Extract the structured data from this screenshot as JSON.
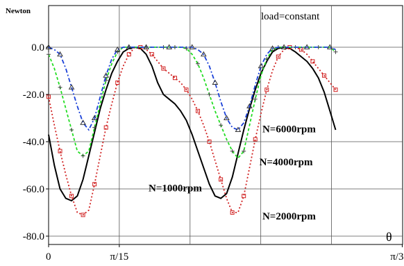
{
  "chart_data": {
    "type": "line",
    "ylabel": "Newton",
    "xlabel": "θ",
    "annotation": "load=constant",
    "xlim": [
      0,
      1.0472
    ],
    "ylim": [
      -90,
      5
    ],
    "y_ticks": [
      {
        "value": 0,
        "label": "0.0"
      },
      {
        "value": -20,
        "label": "-20.0"
      },
      {
        "value": -40,
        "label": "-40.0"
      },
      {
        "value": -60,
        "label": "-60.0"
      },
      {
        "value": -80,
        "label": "-80.0"
      }
    ],
    "x_ticks": [
      {
        "value": 0,
        "label": "0"
      },
      {
        "value": 0.2094,
        "label": "π/15"
      },
      {
        "value": 1.0472,
        "label": "π/3"
      }
    ],
    "x_grid": [
      0.2094,
      0.4189,
      0.6283,
      0.8378
    ],
    "series": [
      {
        "name": "N=1000rpm",
        "color": "#000000",
        "dash": "solid",
        "marker": "none",
        "label_x": 0.296,
        "label_y": -61,
        "points": [
          [
            0,
            -37
          ],
          [
            0.017,
            -50
          ],
          [
            0.034,
            -60
          ],
          [
            0.051,
            -64
          ],
          [
            0.068,
            -65
          ],
          [
            0.085,
            -63
          ],
          [
            0.102,
            -56
          ],
          [
            0.119,
            -46
          ],
          [
            0.136,
            -36
          ],
          [
            0.153,
            -26
          ],
          [
            0.17,
            -18
          ],
          [
            0.187,
            -11
          ],
          [
            0.204,
            -6
          ],
          [
            0.221,
            -2
          ],
          [
            0.238,
            -0.5
          ],
          [
            0.255,
            0
          ],
          [
            0.272,
            -0.5
          ],
          [
            0.289,
            -3
          ],
          [
            0.306,
            -8
          ],
          [
            0.323,
            -15
          ],
          [
            0.34,
            -20
          ],
          [
            0.357,
            -22
          ],
          [
            0.374,
            -24
          ],
          [
            0.391,
            -27
          ],
          [
            0.408,
            -31
          ],
          [
            0.425,
            -37
          ],
          [
            0.442,
            -44
          ],
          [
            0.459,
            -51
          ],
          [
            0.476,
            -58
          ],
          [
            0.493,
            -63
          ],
          [
            0.51,
            -64
          ],
          [
            0.527,
            -62
          ],
          [
            0.544,
            -55
          ],
          [
            0.561,
            -45
          ],
          [
            0.578,
            -35
          ],
          [
            0.595,
            -26
          ],
          [
            0.612,
            -18
          ],
          [
            0.629,
            -11
          ],
          [
            0.646,
            -6
          ],
          [
            0.663,
            -2
          ],
          [
            0.68,
            -0.5
          ],
          [
            0.697,
            0
          ],
          [
            0.714,
            -0.5
          ],
          [
            0.731,
            -2
          ],
          [
            0.748,
            -4
          ],
          [
            0.765,
            -6
          ],
          [
            0.782,
            -9
          ],
          [
            0.799,
            -13
          ],
          [
            0.816,
            -19
          ],
          [
            0.833,
            -27
          ],
          [
            0.85,
            -35
          ]
        ]
      },
      {
        "name": "N=2000rpm",
        "color": "#d02020",
        "dash": "dotted",
        "marker": "square",
        "label_x": 0.633,
        "label_y": -73,
        "points": [
          [
            0,
            -21
          ],
          [
            0.017,
            -33
          ],
          [
            0.034,
            -44
          ],
          [
            0.051,
            -54
          ],
          [
            0.068,
            -63
          ],
          [
            0.085,
            -70
          ],
          [
            0.102,
            -71
          ],
          [
            0.119,
            -69
          ],
          [
            0.136,
            -58
          ],
          [
            0.153,
            -46
          ],
          [
            0.17,
            -34
          ],
          [
            0.187,
            -24
          ],
          [
            0.204,
            -15
          ],
          [
            0.221,
            -8
          ],
          [
            0.238,
            -3
          ],
          [
            0.255,
            0
          ],
          [
            0.272,
            0
          ],
          [
            0.289,
            -1
          ],
          [
            0.306,
            -3
          ],
          [
            0.323,
            -6
          ],
          [
            0.34,
            -9
          ],
          [
            0.357,
            -11
          ],
          [
            0.374,
            -13
          ],
          [
            0.391,
            -15
          ],
          [
            0.408,
            -18
          ],
          [
            0.425,
            -22
          ],
          [
            0.442,
            -27
          ],
          [
            0.459,
            -33
          ],
          [
            0.476,
            -40
          ],
          [
            0.493,
            -48
          ],
          [
            0.51,
            -56
          ],
          [
            0.527,
            -64
          ],
          [
            0.544,
            -70
          ],
          [
            0.561,
            -70
          ],
          [
            0.578,
            -63
          ],
          [
            0.595,
            -51
          ],
          [
            0.612,
            -39
          ],
          [
            0.629,
            -28
          ],
          [
            0.646,
            -18
          ],
          [
            0.663,
            -10
          ],
          [
            0.68,
            -4
          ],
          [
            0.697,
            -1
          ],
          [
            0.714,
            0
          ],
          [
            0.731,
            0
          ],
          [
            0.748,
            -1
          ],
          [
            0.765,
            -3
          ],
          [
            0.782,
            -6
          ],
          [
            0.799,
            -9
          ],
          [
            0.816,
            -12
          ],
          [
            0.833,
            -15
          ],
          [
            0.85,
            -18
          ]
        ]
      },
      {
        "name": "N=4000rpm",
        "color": "#22dd22",
        "dash": "dashed",
        "marker": "plus",
        "label_x": 0.624,
        "label_y": -50,
        "points": [
          [
            0,
            -3
          ],
          [
            0.017,
            -9
          ],
          [
            0.034,
            -17
          ],
          [
            0.051,
            -26
          ],
          [
            0.068,
            -35
          ],
          [
            0.085,
            -44
          ],
          [
            0.102,
            -46
          ],
          [
            0.119,
            -44
          ],
          [
            0.136,
            -34
          ],
          [
            0.153,
            -24
          ],
          [
            0.17,
            -14
          ],
          [
            0.187,
            -7
          ],
          [
            0.204,
            -2
          ],
          [
            0.221,
            0
          ],
          [
            0.238,
            0
          ],
          [
            0.255,
            0
          ],
          [
            0.289,
            0
          ],
          [
            0.323,
            0
          ],
          [
            0.34,
            0
          ],
          [
            0.357,
            0
          ],
          [
            0.374,
            0
          ],
          [
            0.391,
            0
          ],
          [
            0.408,
            -0.5
          ],
          [
            0.425,
            -3
          ],
          [
            0.442,
            -7
          ],
          [
            0.459,
            -13
          ],
          [
            0.476,
            -20
          ],
          [
            0.493,
            -27
          ],
          [
            0.51,
            -33
          ],
          [
            0.527,
            -39
          ],
          [
            0.544,
            -44
          ],
          [
            0.561,
            -47
          ],
          [
            0.578,
            -44
          ],
          [
            0.595,
            -33
          ],
          [
            0.612,
            -22
          ],
          [
            0.629,
            -12
          ],
          [
            0.646,
            -5
          ],
          [
            0.663,
            -1
          ],
          [
            0.68,
            0
          ],
          [
            0.697,
            0
          ],
          [
            0.731,
            0
          ],
          [
            0.765,
            0
          ],
          [
            0.799,
            0
          ],
          [
            0.833,
            0
          ],
          [
            0.85,
            -2
          ]
        ]
      },
      {
        "name": "N=6000rpm",
        "color": "#1a40d8",
        "dash": "dashdot",
        "marker": "triangle",
        "label_x": 0.633,
        "label_y": -36,
        "points": [
          [
            0,
            0
          ],
          [
            0.017,
            -1
          ],
          [
            0.034,
            -3
          ],
          [
            0.051,
            -9
          ],
          [
            0.068,
            -17
          ],
          [
            0.085,
            -25
          ],
          [
            0.102,
            -32
          ],
          [
            0.119,
            -35
          ],
          [
            0.136,
            -30
          ],
          [
            0.153,
            -21
          ],
          [
            0.17,
            -12
          ],
          [
            0.187,
            -5
          ],
          [
            0.204,
            -1
          ],
          [
            0.221,
            0
          ],
          [
            0.238,
            0
          ],
          [
            0.255,
            0
          ],
          [
            0.289,
            0
          ],
          [
            0.323,
            0
          ],
          [
            0.357,
            0
          ],
          [
            0.391,
            0
          ],
          [
            0.425,
            0
          ],
          [
            0.442,
            -1
          ],
          [
            0.459,
            -3
          ],
          [
            0.476,
            -8
          ],
          [
            0.493,
            -15
          ],
          [
            0.51,
            -23
          ],
          [
            0.527,
            -30
          ],
          [
            0.544,
            -34
          ],
          [
            0.561,
            -35
          ],
          [
            0.578,
            -32
          ],
          [
            0.595,
            -25
          ],
          [
            0.612,
            -16
          ],
          [
            0.629,
            -8
          ],
          [
            0.646,
            -3
          ],
          [
            0.663,
            -0.5
          ],
          [
            0.68,
            0
          ],
          [
            0.697,
            0
          ],
          [
            0.731,
            0
          ],
          [
            0.765,
            0
          ],
          [
            0.799,
            0
          ],
          [
            0.833,
            0
          ],
          [
            0.85,
            -1
          ]
        ]
      }
    ]
  }
}
